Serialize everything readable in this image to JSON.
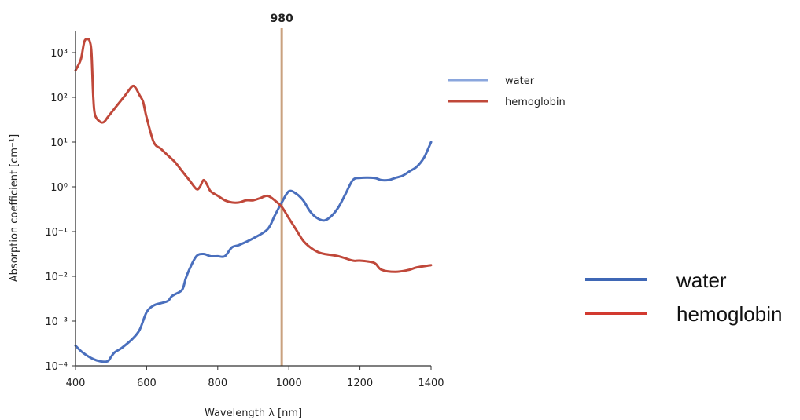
{
  "chart_data": {
    "type": "line",
    "xlabel": "Wavelength λ [nm]",
    "ylabel": "Absorption coefficient [cm⁻¹]",
    "xlim": [
      400,
      1400
    ],
    "x_ticks": [
      "400",
      "600",
      "800",
      "1000",
      "1200",
      "1400"
    ],
    "x_tick_values": [
      400,
      600,
      800,
      1000,
      1200,
      1400
    ],
    "y_scale": "log",
    "ylim_exponent": [
      -4,
      3
    ],
    "y_ticks": [
      "10⁻⁴",
      "10⁻³",
      "10⁻²",
      "10⁻¹",
      "10⁰",
      "10¹",
      "10²",
      "10³"
    ],
    "y_tick_exponents": [
      -4,
      -3,
      -2,
      -1,
      0,
      1,
      2,
      3
    ],
    "marker": {
      "label": "980",
      "x": 980,
      "color": "#c9a17f"
    },
    "series": [
      {
        "name": "water",
        "color": "#4a6fbd",
        "x": [
          400,
          420,
          450,
          470,
          490,
          500,
          510,
          530,
          560,
          580,
          600,
          620,
          640,
          660,
          670,
          680,
          700,
          710,
          720,
          740,
          760,
          780,
          800,
          820,
          840,
          860,
          900,
          940,
          960,
          980,
          1000,
          1020,
          1040,
          1060,
          1080,
          1100,
          1120,
          1140,
          1160,
          1180,
          1200,
          1240,
          1260,
          1280,
          1300,
          1320,
          1340,
          1360,
          1380,
          1400
        ],
        "y_log10": [
          -3.55,
          -3.7,
          -3.85,
          -3.9,
          -3.9,
          -3.8,
          -3.7,
          -3.6,
          -3.4,
          -3.2,
          -2.8,
          -2.65,
          -2.6,
          -2.55,
          -2.45,
          -2.4,
          -2.3,
          -2.05,
          -1.85,
          -1.55,
          -1.5,
          -1.55,
          -1.55,
          -1.55,
          -1.35,
          -1.3,
          -1.15,
          -0.95,
          -0.65,
          -0.35,
          -0.1,
          -0.15,
          -0.3,
          -0.55,
          -0.7,
          -0.75,
          -0.65,
          -0.45,
          -0.15,
          0.15,
          0.2,
          0.2,
          0.15,
          0.15,
          0.2,
          0.25,
          0.35,
          0.45,
          0.65,
          1.0
        ]
      },
      {
        "name": "hemoglobin",
        "color": "#c0483a",
        "x": [
          400,
          415,
          425,
          435,
          440,
          445,
          450,
          455,
          470,
          480,
          490,
          500,
          520,
          540,
          560,
          570,
          580,
          590,
          600,
          620,
          640,
          660,
          680,
          700,
          720,
          740,
          750,
          760,
          770,
          780,
          800,
          820,
          840,
          860,
          880,
          900,
          920,
          940,
          960,
          980,
          1000,
          1020,
          1040,
          1060,
          1080,
          1100,
          1140,
          1180,
          1200,
          1240,
          1260,
          1300,
          1340,
          1360,
          1400
        ],
        "y_log10": [
          2.6,
          2.85,
          3.25,
          3.3,
          3.25,
          3.0,
          2.0,
          1.6,
          1.45,
          1.45,
          1.55,
          1.65,
          1.85,
          2.05,
          2.25,
          2.2,
          2.05,
          1.9,
          1.55,
          1.0,
          0.85,
          0.7,
          0.55,
          0.35,
          0.15,
          -0.05,
          0.0,
          0.15,
          0.05,
          -0.1,
          -0.2,
          -0.3,
          -0.35,
          -0.35,
          -0.3,
          -0.3,
          -0.25,
          -0.2,
          -0.3,
          -0.45,
          -0.7,
          -0.95,
          -1.2,
          -1.35,
          -1.45,
          -1.5,
          -1.55,
          -1.65,
          -1.65,
          -1.7,
          -1.85,
          -1.9,
          -1.85,
          -1.8,
          -1.75
        ]
      }
    ]
  },
  "legend_small": [
    {
      "label": "water",
      "color": "#8aa6dd"
    },
    {
      "label": "hemoglobin",
      "color": "#c0483a"
    }
  ],
  "legend_large": [
    {
      "label": "water",
      "color": "#3f67b5"
    },
    {
      "label": "hemoglobin",
      "color": "#d23a30"
    }
  ]
}
